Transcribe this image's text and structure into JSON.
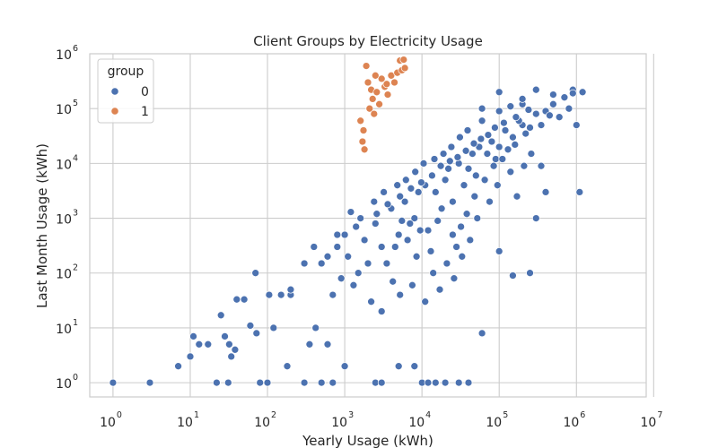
{
  "chart_data": {
    "type": "scatter",
    "title": "Client Groups by Electricity Usage",
    "xlabel": "Yearly Usage (kWh)",
    "ylabel": "Last Month Usage (kWh)",
    "xscale": "log",
    "yscale": "log",
    "xlim": [
      0.5,
      8000000
    ],
    "ylim": [
      0.55,
      1000000
    ],
    "grid": true,
    "legend": {
      "title": "group",
      "placement": "top-left"
    },
    "x_ticks": [
      {
        "base": "10",
        "exp": "0",
        "value": 1
      },
      {
        "base": "10",
        "exp": "1",
        "value": 10
      },
      {
        "base": "10",
        "exp": "2",
        "value": 100
      },
      {
        "base": "10",
        "exp": "3",
        "value": 1000
      },
      {
        "base": "10",
        "exp": "4",
        "value": 10000
      },
      {
        "base": "10",
        "exp": "5",
        "value": 100000
      },
      {
        "base": "10",
        "exp": "6",
        "value": 1000000
      },
      {
        "base": "10",
        "exp": "7",
        "value": 10000000
      }
    ],
    "y_ticks": [
      {
        "base": "10",
        "exp": "0",
        "value": 1
      },
      {
        "base": "10",
        "exp": "1",
        "value": 10
      },
      {
        "base": "10",
        "exp": "2",
        "value": 100
      },
      {
        "base": "10",
        "exp": "3",
        "value": 1000
      },
      {
        "base": "10",
        "exp": "4",
        "value": 10000
      },
      {
        "base": "10",
        "exp": "5",
        "value": 100000
      },
      {
        "base": "10",
        "exp": "6",
        "value": 1000000
      }
    ],
    "series": [
      {
        "name": "0",
        "color": "#4c72b0",
        "points": [
          [
            1,
            1
          ],
          [
            3,
            1
          ],
          [
            7,
            2
          ],
          [
            10,
            3
          ],
          [
            11,
            7
          ],
          [
            13,
            5
          ],
          [
            17,
            5
          ],
          [
            22,
            1
          ],
          [
            25,
            17
          ],
          [
            28,
            7
          ],
          [
            31,
            1
          ],
          [
            32,
            5
          ],
          [
            34,
            3
          ],
          [
            38,
            4
          ],
          [
            40,
            33
          ],
          [
            50,
            33
          ],
          [
            60,
            11
          ],
          [
            70,
            100
          ],
          [
            72,
            8
          ],
          [
            80,
            1
          ],
          [
            100,
            1
          ],
          [
            105,
            40
          ],
          [
            120,
            10
          ],
          [
            150,
            40
          ],
          [
            180,
            2
          ],
          [
            200,
            40
          ],
          [
            200,
            50
          ],
          [
            300,
            1
          ],
          [
            300,
            150
          ],
          [
            350,
            5
          ],
          [
            400,
            300
          ],
          [
            420,
            10
          ],
          [
            500,
            1
          ],
          [
            600,
            5
          ],
          [
            700,
            1
          ],
          [
            800,
            500
          ],
          [
            1000,
            2
          ],
          [
            1200,
            1300
          ],
          [
            2500,
            1
          ],
          [
            3000,
            1
          ],
          [
            5000,
            2
          ],
          [
            8000,
            2
          ],
          [
            10000,
            1
          ],
          [
            12000,
            1
          ],
          [
            15000,
            1
          ],
          [
            20000,
            1
          ],
          [
            30000,
            1
          ],
          [
            40000,
            1
          ],
          [
            60000,
            8
          ],
          [
            100000,
            250
          ],
          [
            150000,
            90
          ],
          [
            250000,
            100
          ],
          [
            300000,
            1000
          ],
          [
            400000,
            3000
          ],
          [
            350000,
            9000
          ],
          [
            200000,
            120000
          ],
          [
            300000,
            220000
          ],
          [
            500000,
            180000
          ],
          [
            900000,
            220000
          ],
          [
            1000000,
            50000
          ],
          [
            1100000,
            3000
          ],
          [
            1200000,
            200000
          ],
          [
            100000,
            200000
          ],
          [
            60000,
            100000
          ],
          [
            3000,
            300
          ],
          [
            5000,
            500
          ],
          [
            8000,
            1000
          ],
          [
            15000,
            3000
          ],
          [
            20000,
            5000
          ],
          [
            25000,
            2000
          ],
          [
            40000,
            8000
          ],
          [
            50000,
            6000
          ],
          [
            70000,
            15000
          ],
          [
            100000,
            20000
          ],
          [
            150000,
            30000
          ],
          [
            200000,
            50000
          ],
          [
            300000,
            80000
          ],
          [
            500000,
            120000
          ],
          [
            700000,
            160000
          ],
          [
            900000,
            190000
          ],
          [
            2000,
            150
          ],
          [
            2500,
            800
          ],
          [
            4000,
            1500
          ],
          [
            6000,
            2000
          ],
          [
            7000,
            800
          ],
          [
            9000,
            3000
          ],
          [
            11000,
            4000
          ],
          [
            12000,
            600
          ],
          [
            18000,
            1500
          ],
          [
            22000,
            8000
          ],
          [
            30000,
            10000
          ],
          [
            35000,
            4000
          ],
          [
            45000,
            15000
          ],
          [
            55000,
            20000
          ],
          [
            80000,
            25000
          ],
          [
            90000,
            12000
          ],
          [
            120000,
            40000
          ],
          [
            180000,
            60000
          ],
          [
            250000,
            45000
          ],
          [
            400000,
            90000
          ],
          [
            600000,
            70000
          ],
          [
            800000,
            100000
          ],
          [
            1500,
            100
          ],
          [
            1800,
            400
          ],
          [
            3500,
            150
          ],
          [
            4500,
            300
          ],
          [
            5500,
            900
          ],
          [
            6500,
            400
          ],
          [
            8500,
            200
          ],
          [
            9500,
            600
          ],
          [
            13000,
            250
          ],
          [
            16000,
            900
          ],
          [
            25000,
            500
          ],
          [
            28000,
            300
          ],
          [
            32000,
            700
          ],
          [
            38000,
            1200
          ],
          [
            48000,
            2500
          ],
          [
            65000,
            5000
          ],
          [
            85000,
            9000
          ],
          [
            110000,
            12000
          ],
          [
            130000,
            18000
          ],
          [
            160000,
            22000
          ],
          [
            220000,
            35000
          ],
          [
            350000,
            50000
          ],
          [
            450000,
            75000
          ],
          [
            700,
            40
          ],
          [
            900,
            80
          ],
          [
            1100,
            200
          ],
          [
            1300,
            60
          ],
          [
            2200,
            30
          ],
          [
            3000,
            20
          ],
          [
            4200,
            70
          ],
          [
            5200,
            40
          ],
          [
            7500,
            60
          ],
          [
            11000,
            30
          ],
          [
            14000,
            100
          ],
          [
            17000,
            50
          ],
          [
            21000,
            150
          ],
          [
            26000,
            80
          ],
          [
            33000,
            200
          ],
          [
            42000,
            400
          ],
          [
            52000,
            1000
          ],
          [
            75000,
            2000
          ],
          [
            95000,
            4000
          ],
          [
            140000,
            7000
          ],
          [
            170000,
            2500
          ],
          [
            210000,
            9000
          ],
          [
            260000,
            15000
          ],
          [
            600,
            200
          ],
          [
            1000,
            500
          ],
          [
            1600,
            1000
          ],
          [
            2400,
            2000
          ],
          [
            3200,
            3000
          ],
          [
            4800,
            4000
          ],
          [
            6200,
            5000
          ],
          [
            8200,
            7000
          ],
          [
            10500,
            10000
          ],
          [
            14500,
            12000
          ],
          [
            19000,
            15000
          ],
          [
            24000,
            20000
          ],
          [
            31000,
            30000
          ],
          [
            39000,
            40000
          ],
          [
            60000,
            60000
          ],
          [
            100000,
            90000
          ],
          [
            140000,
            110000
          ],
          [
            200000,
            150000
          ],
          [
            500,
            150
          ],
          [
            800,
            300
          ],
          [
            1400,
            700
          ],
          [
            2600,
            1200
          ],
          [
            3600,
            1800
          ],
          [
            5200,
            2500
          ],
          [
            7200,
            3500
          ],
          [
            9800,
            4500
          ],
          [
            13500,
            6000
          ],
          [
            17500,
            9000
          ],
          [
            23000,
            11000
          ],
          [
            29000,
            13000
          ],
          [
            37000,
            17000
          ],
          [
            47000,
            23000
          ],
          [
            58000,
            28000
          ],
          [
            72000,
            33000
          ],
          [
            88000,
            45000
          ],
          [
            115000,
            55000
          ],
          [
            165000,
            70000
          ],
          [
            240000,
            95000
          ]
        ]
      },
      {
        "name": "1",
        "color": "#dd8452",
        "points": [
          [
            1700,
            25000
          ],
          [
            1800,
            18000
          ],
          [
            1900,
            600000
          ],
          [
            2000,
            300000
          ],
          [
            2100,
            100000
          ],
          [
            2200,
            220000
          ],
          [
            2300,
            150000
          ],
          [
            2400,
            80000
          ],
          [
            2600,
            200000
          ],
          [
            2800,
            120000
          ],
          [
            3000,
            350000
          ],
          [
            3300,
            250000
          ],
          [
            3600,
            180000
          ],
          [
            4000,
            400000
          ],
          [
            4400,
            300000
          ],
          [
            4800,
            450000
          ],
          [
            5200,
            750000
          ],
          [
            5500,
            500000
          ],
          [
            5800,
            780000
          ],
          [
            6000,
            550000
          ],
          [
            1600,
            60000
          ],
          [
            1750,
            40000
          ],
          [
            2500,
            400000
          ],
          [
            3500,
            280000
          ]
        ]
      }
    ]
  }
}
